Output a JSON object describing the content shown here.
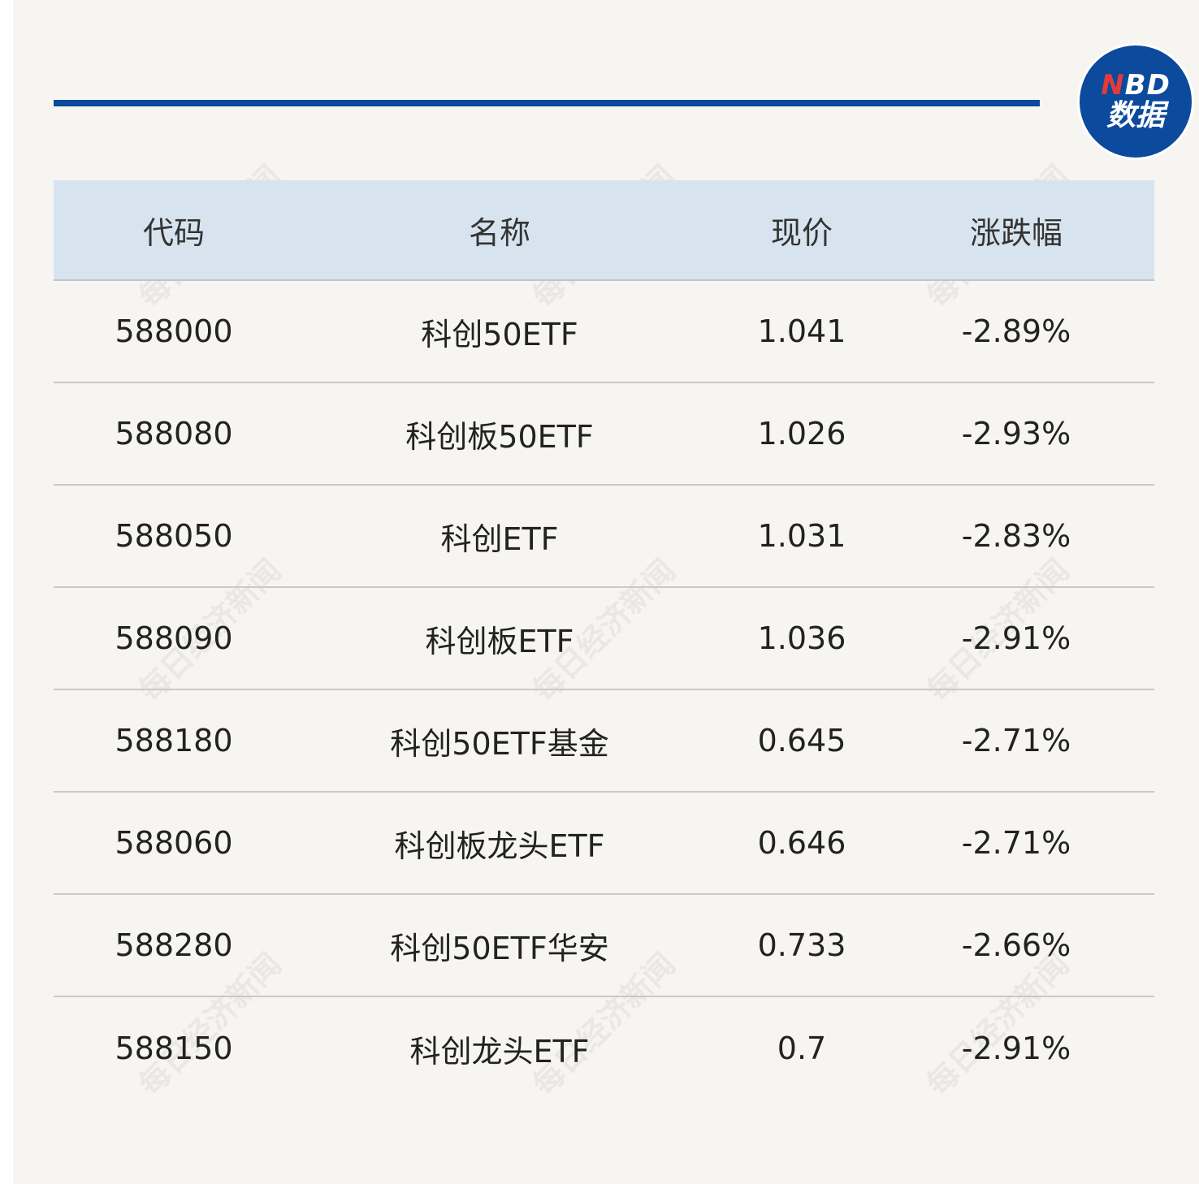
{
  "logo": {
    "line1_accent": "N",
    "line1_rest": "BD",
    "line2": "数据"
  },
  "watermark": "每日经济新闻",
  "chart_data": {
    "type": "table",
    "columns": [
      "代码",
      "名称",
      "现价",
      "涨跌幅"
    ],
    "rows": [
      [
        "588000",
        "科创50ETF",
        "1.041",
        "-2.89%"
      ],
      [
        "588080",
        "科创板50ETF",
        "1.026",
        "-2.93%"
      ],
      [
        "588050",
        "科创ETF",
        "1.031",
        "-2.83%"
      ],
      [
        "588090",
        "科创板ETF",
        "1.036",
        "-2.91%"
      ],
      [
        "588180",
        "科创50ETF基金",
        "0.645",
        "-2.71%"
      ],
      [
        "588060",
        "科创板龙头ETF",
        "0.646",
        "-2.71%"
      ],
      [
        "588280",
        "科创50ETF华安",
        "0.733",
        "-2.66%"
      ],
      [
        "588150",
        "科创龙头ETF",
        "0.7",
        "-2.91%"
      ]
    ]
  },
  "colors": {
    "accent": "#0b4a9c",
    "header_bg": "#d7e4ef",
    "page_bg": "#f7f5f2",
    "logo_accent": "#e23b3b"
  }
}
